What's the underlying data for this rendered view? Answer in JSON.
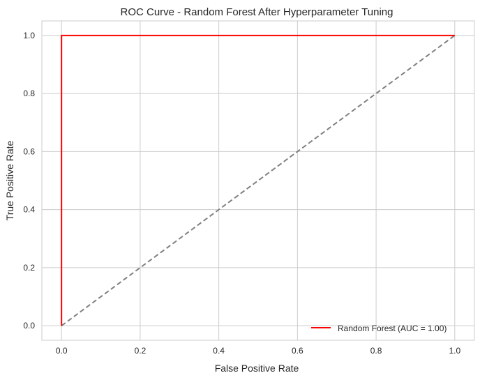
{
  "chart_data": {
    "type": "line",
    "title": "ROC Curve - Random Forest After Hyperparameter Tuning",
    "xlabel": "False Positive Rate",
    "ylabel": "True Positive Rate",
    "xlim": [
      -0.05,
      1.05
    ],
    "ylim": [
      -0.05,
      1.05
    ],
    "xticks": [
      "0.0",
      "0.2",
      "0.4",
      "0.6",
      "0.8",
      "1.0"
    ],
    "yticks": [
      "0.0",
      "0.2",
      "0.4",
      "0.6",
      "0.8",
      "1.0"
    ],
    "grid": true,
    "legend_position": "lower right",
    "series": [
      {
        "name": "Random Forest (AUC = 1.00)",
        "color": "#ff0000",
        "style": "solid",
        "x": [
          0.0,
          0.0,
          1.0
        ],
        "y": [
          0.0,
          1.0,
          1.0
        ]
      },
      {
        "color": "#808080",
        "style": "dashed",
        "x": [
          0.0,
          1.0
        ],
        "y": [
          0.0,
          1.0
        ]
      }
    ]
  }
}
